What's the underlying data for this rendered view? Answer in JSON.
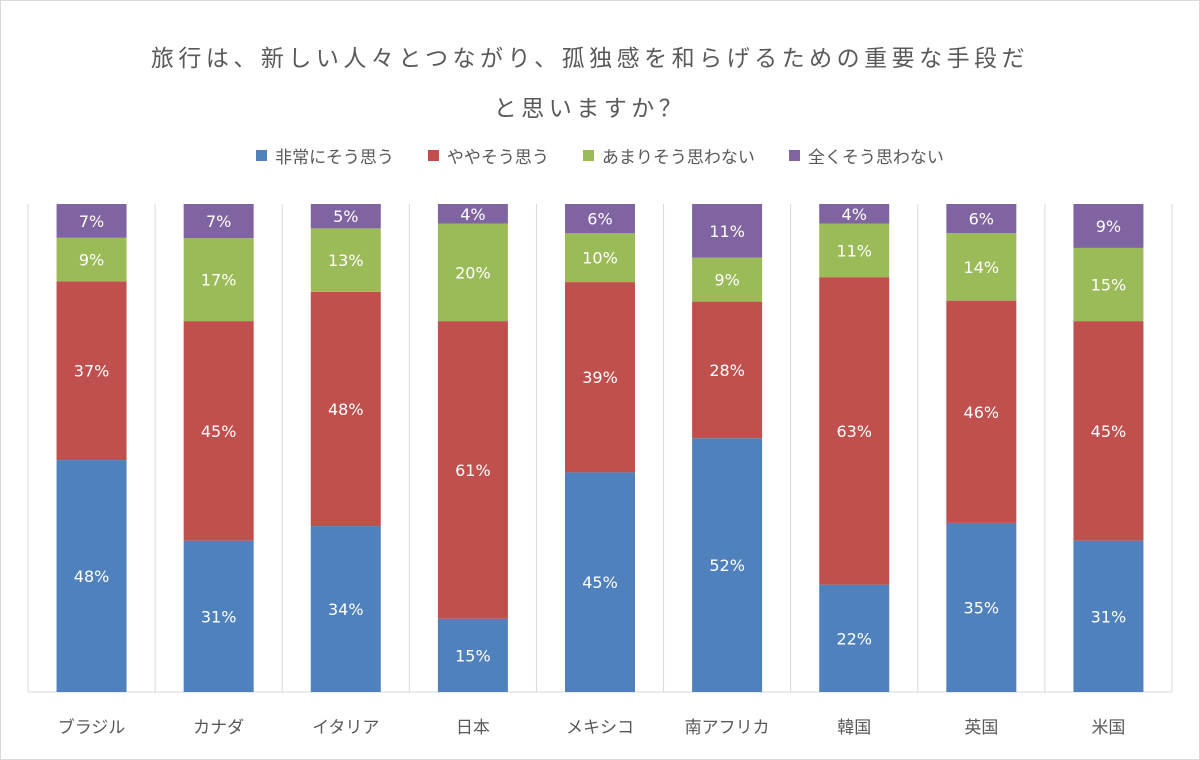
{
  "chart_data": {
    "type": "bar",
    "stacked": "percent",
    "title": "旅行は、新しい人々とつながり、孤独感を和らげるための重要な手段だと思いますか？",
    "categories": [
      "ブラジル",
      "カナダ",
      "イタリア",
      "日本",
      "メキシコ",
      "南アフリカ",
      "韓国",
      "英国",
      "米国"
    ],
    "series": [
      {
        "name": "非常にそう思う",
        "color": "#4F81BD",
        "values": [
          48,
          31,
          34,
          15,
          45,
          52,
          22,
          35,
          31
        ]
      },
      {
        "name": "ややそう思う",
        "color": "#C0504D",
        "values": [
          37,
          45,
          48,
          61,
          39,
          28,
          63,
          46,
          45
        ]
      },
      {
        "name": "あまりそう思わない",
        "color": "#9BBB59",
        "values": [
          9,
          17,
          13,
          20,
          10,
          9,
          11,
          14,
          15
        ]
      },
      {
        "name": "全くそう思わない",
        "color": "#8064A2",
        "values": [
          7,
          7,
          5,
          4,
          6,
          11,
          4,
          6,
          9
        ]
      }
    ],
    "data_label_suffix": "%",
    "ylim": [
      0,
      100
    ],
    "grid": "vertical separators",
    "legend_position": "top"
  }
}
